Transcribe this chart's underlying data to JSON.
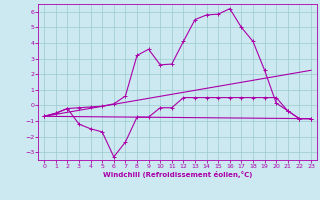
{
  "xlabel": "Windchill (Refroidissement éolien,°C)",
  "background_color": "#cce8f0",
  "grid_color": "#99cccc",
  "line_color": "#aa00aa",
  "xlim": [
    -0.5,
    23.5
  ],
  "ylim": [
    -3.5,
    6.5
  ],
  "xticks": [
    0,
    1,
    2,
    3,
    4,
    5,
    6,
    7,
    8,
    9,
    10,
    11,
    12,
    13,
    14,
    15,
    16,
    17,
    18,
    19,
    20,
    21,
    22,
    23
  ],
  "yticks": [
    -3,
    -2,
    -1,
    0,
    1,
    2,
    3,
    4,
    5,
    6
  ],
  "line1_x": [
    0,
    1,
    2,
    3,
    4,
    5,
    6,
    7,
    8,
    9,
    10,
    11,
    12,
    13,
    14,
    15,
    16,
    17,
    18,
    19,
    20,
    21,
    22,
    23
  ],
  "line1_y": [
    -0.7,
    -0.5,
    -0.2,
    -0.15,
    -0.1,
    -0.05,
    0.1,
    0.6,
    3.2,
    3.6,
    2.6,
    2.65,
    4.1,
    5.5,
    5.8,
    5.85,
    6.2,
    5.0,
    4.1,
    2.25,
    0.15,
    -0.35,
    -0.85,
    -0.85
  ],
  "line2_x": [
    0,
    1,
    2,
    3,
    4,
    5,
    6,
    7,
    8,
    9,
    10,
    11,
    12,
    13,
    14,
    15,
    16,
    17,
    18,
    19,
    20,
    21,
    22,
    23
  ],
  "line2_y": [
    -0.7,
    -0.5,
    -0.2,
    -1.2,
    -1.5,
    -1.7,
    -3.3,
    -2.35,
    -0.75,
    -0.75,
    -0.15,
    -0.15,
    0.5,
    0.5,
    0.5,
    0.5,
    0.5,
    0.5,
    0.5,
    0.5,
    0.5,
    -0.35,
    -0.85,
    -0.85
  ],
  "line3_x": [
    0,
    23
  ],
  "line3_y": [
    -0.7,
    2.25
  ],
  "line4_x": [
    0,
    23
  ],
  "line4_y": [
    -0.7,
    -0.85
  ]
}
